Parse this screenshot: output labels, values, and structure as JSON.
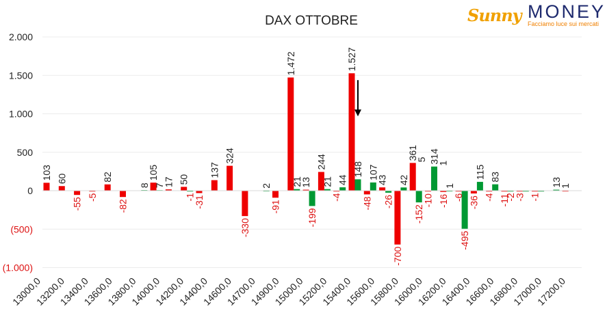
{
  "logo": {
    "brand_left": "Sunny",
    "brand_right": "MONEY",
    "tagline": "Facciamo luce sui mercati"
  },
  "colors": {
    "positive": "#009933",
    "negative": "#ee0000",
    "negative_label": "#dd1111",
    "text": "#222222",
    "grid": "#ececec"
  },
  "chart_data": {
    "type": "bar",
    "title": "DAX OTTOBRE",
    "xlabel": "",
    "ylabel": "",
    "ylim": [
      -1000,
      2000
    ],
    "yticks": [
      {
        "value": 2000,
        "label": "2.000"
      },
      {
        "value": 1500,
        "label": "1.500"
      },
      {
        "value": 1000,
        "label": "1.000"
      },
      {
        "value": 500,
        "label": "500"
      },
      {
        "value": 0,
        "label": "0"
      },
      {
        "value": -500,
        "label": "(500)"
      },
      {
        "value": -1000,
        "label": "(1.000)"
      }
    ],
    "category_labels": [
      "13000,0",
      "13200,0",
      "13400,0",
      "13600,0",
      "13800,0",
      "14000,0",
      "14200,0",
      "14400,0",
      "14600,0",
      "14700,0",
      "14900,0",
      "15000,0",
      "15200,0",
      "15400,0",
      "15600,0",
      "15800,0",
      "16000,0",
      "16200,0",
      "16400,0",
      "16600,0",
      "16800,0",
      "17000,0",
      "17200,0"
    ],
    "grid": true,
    "legend": "none",
    "series": [
      {
        "color": "red",
        "positions": [
          0,
          1,
          2,
          3,
          4,
          5,
          7,
          8,
          9,
          10,
          11,
          12,
          13,
          15,
          16,
          17,
          18,
          19,
          20,
          21,
          22,
          23,
          24,
          25,
          26,
          27,
          28,
          29,
          30,
          31,
          32,
          34
        ],
        "values": [
          103,
          60,
          -55,
          -5,
          82,
          -82,
          105,
          17,
          50,
          -31,
          137,
          324,
          -330,
          -91,
          1472,
          13,
          244,
          -4,
          1527,
          -48,
          43,
          -700,
          361,
          -10,
          -16,
          -6,
          -36,
          -4,
          -11,
          -3,
          -1,
          1
        ],
        "labels": [
          "103",
          "60",
          "-55",
          "-5",
          "82",
          "-82",
          "105",
          "17",
          "50",
          "-31",
          "137",
          "324",
          "-330",
          "-91",
          "1.472",
          "13",
          "244",
          "-4",
          "1.527",
          "-48",
          "43",
          "-700",
          "361",
          "-10",
          "-16",
          "-6",
          "-36",
          "-4",
          "-11",
          "-3",
          "-1",
          "1"
        ]
      },
      {
        "color": "green",
        "positions": [
          6,
          7,
          9,
          14,
          16,
          17,
          18,
          19,
          20,
          21,
          22,
          23,
          24,
          25,
          26,
          27,
          28,
          29,
          30,
          31,
          32,
          33
        ],
        "values": [
          8,
          7,
          -1,
          2,
          21,
          -199,
          21,
          44,
          148,
          107,
          -26,
          42,
          -152,
          314,
          1,
          -495,
          115,
          83,
          -2,
          -1,
          -1,
          13
        ],
        "labels": [
          "8",
          "7",
          "-1",
          "2",
          "21",
          "-199",
          "21",
          "44",
          "148",
          "107",
          "-26",
          "42",
          "-152",
          "314",
          "1",
          "-495",
          "115",
          "83",
          "-2",
          "",
          "",
          "13"
        ]
      }
    ],
    "annotations": [
      {
        "type": "arrow",
        "direction": "down",
        "near": "1.527"
      },
      {
        "type": "text",
        "text": "5",
        "near": "361"
      },
      {
        "type": "text",
        "text": "1",
        "near": "314"
      }
    ]
  }
}
